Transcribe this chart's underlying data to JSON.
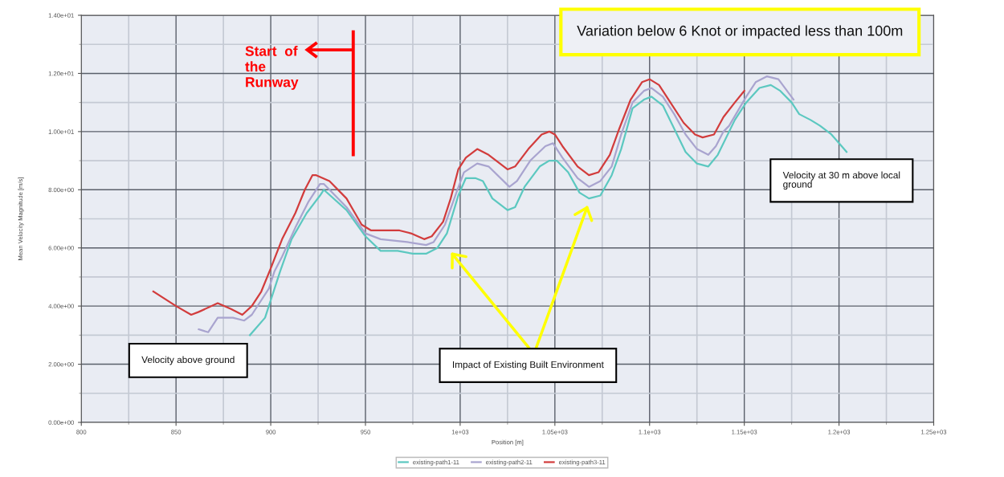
{
  "chart_data": {
    "type": "line",
    "xlabel": "Position [m]",
    "ylabel": "Mean Velocity Magnitude [m/s]",
    "xlim": [
      800,
      1250
    ],
    "xticks": [
      800,
      850,
      900,
      950,
      {
        "value": 1000,
        "label": "1e+03"
      },
      {
        "value": 1050,
        "label": "1.05e+03"
      },
      {
        "value": 1100,
        "label": "1.1e+03"
      },
      {
        "value": 1150,
        "label": "1.15e+03"
      },
      {
        "value": 1200,
        "label": "1.2e+03"
      },
      {
        "value": 1250,
        "label": "1.25e+03"
      }
    ],
    "ylim": [
      0,
      14
    ],
    "yticks": [
      {
        "value": 0,
        "label": "0.00e+00"
      },
      {
        "value": 2,
        "label": "2.00e+00"
      },
      {
        "value": 4,
        "label": "4.00e+00"
      },
      {
        "value": 6,
        "label": "6.00e+00"
      },
      {
        "value": 8,
        "label": "8.00e+00"
      },
      {
        "value": 10,
        "label": "1.00e+01"
      },
      {
        "value": 12,
        "label": "1.20e+01"
      },
      {
        "value": 14,
        "label": "1.40e+01"
      }
    ],
    "grid": true,
    "legend": "bottom",
    "marker": "none",
    "line_style": "solid",
    "series": [
      {
        "name": "existing-path1-11",
        "color": "#5cc8c0",
        "x": [
          889,
          897,
          900,
          905,
          911,
          919,
          926,
          928,
          940,
          950,
          958,
          967,
          975,
          982,
          988,
          993,
          999,
          1003,
          1008,
          1012,
          1017,
          1025,
          1029,
          1034,
          1042,
          1047,
          1051,
          1057,
          1063,
          1068,
          1074,
          1080,
          1085,
          1091,
          1097,
          1101,
          1107,
          1113,
          1119,
          1125,
          1131,
          1136,
          1145,
          1151,
          1158,
          1164,
          1169,
          1175,
          1179,
          1185,
          1190,
          1196,
          1200,
          1204
        ],
        "values": [
          3.0,
          3.6,
          4.2,
          5.2,
          6.3,
          7.2,
          7.8,
          8.0,
          7.3,
          6.4,
          5.9,
          5.9,
          5.8,
          5.8,
          6.0,
          6.5,
          7.8,
          8.4,
          8.4,
          8.3,
          7.7,
          7.3,
          7.4,
          8.1,
          8.8,
          9.0,
          9.0,
          8.6,
          7.9,
          7.7,
          7.8,
          8.5,
          9.4,
          10.8,
          11.1,
          11.2,
          10.9,
          10.1,
          9.3,
          8.9,
          8.8,
          9.2,
          10.4,
          11.0,
          11.5,
          11.6,
          11.4,
          11.0,
          10.6,
          10.4,
          10.2,
          9.9,
          9.6,
          9.3
        ]
      },
      {
        "name": "existing-path2-11",
        "color": "#a9a4cf",
        "x": [
          862,
          867,
          872,
          880,
          886,
          890,
          894,
          899,
          902,
          906,
          913,
          920,
          926,
          928,
          940,
          950,
          958,
          972,
          982,
          986,
          992,
          998,
          1002,
          1009,
          1015,
          1026,
          1030,
          1037,
          1045,
          1049,
          1054,
          1062,
          1068,
          1074,
          1080,
          1085,
          1091,
          1097,
          1101,
          1107,
          1113,
          1119,
          1125,
          1131,
          1135,
          1139,
          1142,
          1151,
          1156,
          1162,
          1168,
          1176
        ],
        "values": [
          3.2,
          3.1,
          3.6,
          3.6,
          3.5,
          3.7,
          4.1,
          4.6,
          5.2,
          5.7,
          6.7,
          7.6,
          8.2,
          8.2,
          7.4,
          6.5,
          6.3,
          6.2,
          6.1,
          6.2,
          6.8,
          7.9,
          8.6,
          8.9,
          8.8,
          8.1,
          8.3,
          9.0,
          9.5,
          9.6,
          9.1,
          8.4,
          8.1,
          8.3,
          8.8,
          9.9,
          11.0,
          11.4,
          11.5,
          11.2,
          10.6,
          9.9,
          9.4,
          9.2,
          9.5,
          10.0,
          10.2,
          11.2,
          11.7,
          11.9,
          11.8,
          11.1
        ]
      },
      {
        "name": "existing-path3-11",
        "color": "#d23c3c",
        "x": [
          838,
          850,
          858,
          862,
          872,
          879,
          885,
          890,
          895,
          900,
          906,
          913,
          918,
          922,
          924,
          931,
          940,
          948,
          953,
          958,
          968,
          974,
          981,
          985,
          991,
          995,
          999,
          1003,
          1009,
          1015,
          1025,
          1029,
          1036,
          1043,
          1047,
          1050,
          1054,
          1062,
          1068,
          1073,
          1079,
          1084,
          1090,
          1096,
          1100,
          1105,
          1111,
          1118,
          1124,
          1128,
          1134,
          1139,
          1145,
          1150
        ],
        "values": [
          4.5,
          4.0,
          3.7,
          3.8,
          4.1,
          3.9,
          3.7,
          4.0,
          4.5,
          5.3,
          6.3,
          7.2,
          8.0,
          8.5,
          8.5,
          8.3,
          7.7,
          6.8,
          6.6,
          6.6,
          6.6,
          6.5,
          6.3,
          6.4,
          6.9,
          7.7,
          8.7,
          9.1,
          9.4,
          9.2,
          8.7,
          8.8,
          9.4,
          9.9,
          10.0,
          9.9,
          9.5,
          8.8,
          8.5,
          8.6,
          9.2,
          10.1,
          11.1,
          11.7,
          11.8,
          11.6,
          11.0,
          10.3,
          9.9,
          9.8,
          9.9,
          10.5,
          11.0,
          11.4
        ]
      }
    ],
    "annotations": [
      "Start  of\nthe\nRunway",
      "Variation below 6 Knot or impacted less than 100m",
      "Velocity at 30 m above local\nground",
      "Velocity above ground",
      "Impact of Existing Built Environment"
    ]
  }
}
